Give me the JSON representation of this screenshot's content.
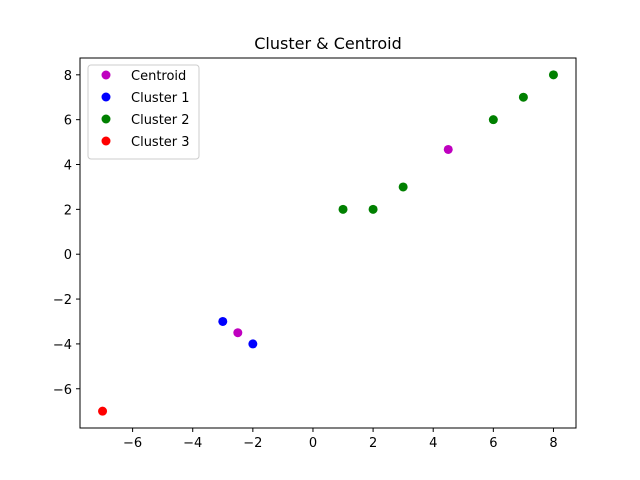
{
  "chart_data": {
    "type": "scatter",
    "title": "Cluster & Centroid",
    "xlabel": "",
    "ylabel": "",
    "xlim": [
      -7.75,
      8.75
    ],
    "ylim": [
      -7.75,
      8.75
    ],
    "xticks": [
      -6,
      -4,
      -2,
      0,
      2,
      4,
      6,
      8
    ],
    "yticks": [
      -6,
      -4,
      -2,
      0,
      2,
      4,
      6,
      8
    ],
    "grid": false,
    "legend_position": "top-left",
    "series": [
      {
        "name": "Centroid",
        "color": "#bf00bf",
        "points": [
          [
            -2.5,
            -3.5
          ],
          [
            4.5,
            4.67
          ]
        ]
      },
      {
        "name": "Cluster 1",
        "color": "#0000ff",
        "points": [
          [
            -3,
            -3
          ],
          [
            -2,
            -4
          ]
        ]
      },
      {
        "name": "Cluster 2",
        "color": "#008000",
        "points": [
          [
            1,
            2
          ],
          [
            2,
            2
          ],
          [
            3,
            3
          ],
          [
            6,
            6
          ],
          [
            7,
            7
          ],
          [
            8,
            8
          ]
        ]
      },
      {
        "name": "Cluster 3",
        "color": "#ff0000",
        "points": [
          [
            -7,
            -7
          ]
        ]
      }
    ]
  }
}
